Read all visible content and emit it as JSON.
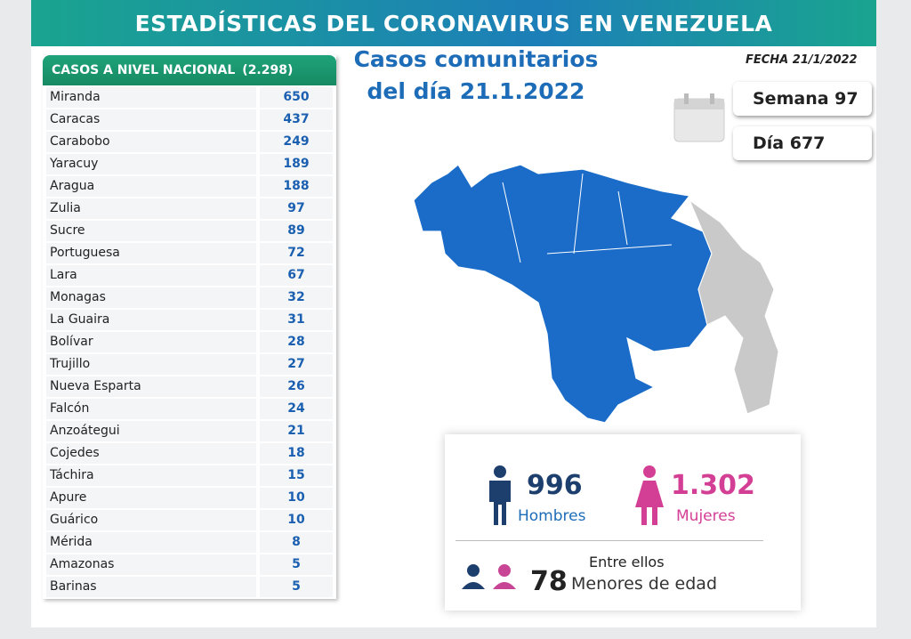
{
  "header": {
    "title": "ESTADÍSTICAS DEL CORONAVIRUS EN VENEZUELA",
    "date": "FECHA 21/1/2022"
  },
  "subtitle": {
    "line1": "Casos comunitarios",
    "line2": "del día 21.1.2022"
  },
  "counters": {
    "week": "Semana 97",
    "day": "Día 677"
  },
  "table": {
    "title": "CASOS A NIVEL NACIONAL",
    "total": "(2.298)",
    "rows": [
      [
        "Miranda",
        650
      ],
      [
        "Caracas",
        437
      ],
      [
        "Carabobo",
        249
      ],
      [
        "Yaracuy",
        189
      ],
      [
        "Aragua",
        188
      ],
      [
        "Zulia",
        97
      ],
      [
        "Sucre",
        89
      ],
      [
        "Portuguesa",
        72
      ],
      [
        "Lara",
        67
      ],
      [
        "Monagas",
        32
      ],
      [
        "La Guaira",
        31
      ],
      [
        "Bolívar",
        28
      ],
      [
        "Trujillo",
        27
      ],
      [
        "Nueva Esparta",
        26
      ],
      [
        "Falcón",
        24
      ],
      [
        "Anzoátegui",
        21
      ],
      [
        "Cojedes",
        18
      ],
      [
        "Táchira",
        15
      ],
      [
        "Apure",
        10
      ],
      [
        "Guárico",
        10
      ],
      [
        "Mérida",
        8
      ],
      [
        "Amazonas",
        5
      ],
      [
        "Barinas",
        5
      ]
    ]
  },
  "gender": {
    "men_count": 996,
    "men_label": "Hombres",
    "women_count": "1.302",
    "women_label": "Mujeres",
    "minors_intro": "Entre ellos",
    "minors_count": 78,
    "minors_label": "Menores de edad"
  }
}
